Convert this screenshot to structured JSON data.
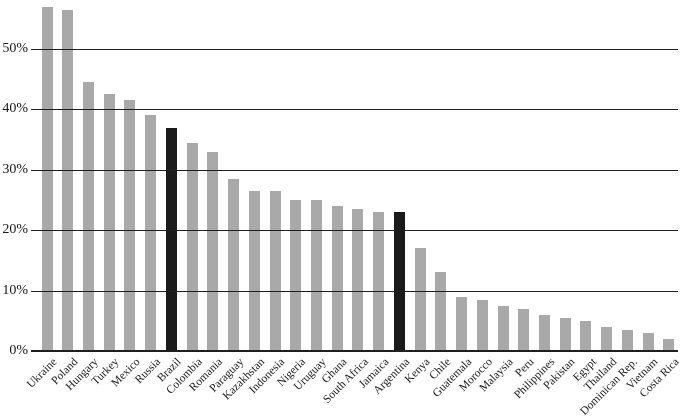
{
  "chart_data": {
    "type": "bar",
    "title": "",
    "xlabel": "",
    "ylabel": "",
    "categories": [
      "Ukraine",
      "Poland",
      "Hungary",
      "Turkey",
      "Mexico",
      "Russia",
      "Brazil",
      "Colombia",
      "Romania",
      "Paraguay",
      "Kazakhstan",
      "Indonesia",
      "Nigeria",
      "Uruguay",
      "Ghana",
      "South Africa",
      "Jamaica",
      "Argentina",
      "Kenya",
      "Chile",
      "Guatemala",
      "Morocco",
      "Malaysia",
      "Peru",
      "Philippines",
      "Pakistan",
      "Egypt",
      "Thailand",
      "Dominican Rep.",
      "Vietnam",
      "Costa Rica"
    ],
    "values": [
      57,
      56.5,
      44.5,
      42.5,
      41.5,
      39,
      37,
      34.5,
      33,
      28.5,
      26.5,
      26.5,
      25,
      25,
      24,
      23.5,
      23,
      23,
      17,
      13,
      9,
      8.5,
      7.5,
      7,
      6,
      5.5,
      5,
      4,
      3.5,
      3,
      2
    ],
    "highlighted_categories": [
      "Brazil",
      "Argentina"
    ],
    "yticks": [
      0,
      10,
      20,
      30,
      40,
      50
    ],
    "ytick_labels": [
      "0%",
      "10%",
      "20%",
      "30%",
      "40%",
      "50%"
    ],
    "ylim": [
      0,
      58
    ],
    "grid": true,
    "gridlines_over_bars": true,
    "legend": "none",
    "colors": {
      "bar": "#a9a9a9",
      "highlight": "#1a1a1a",
      "gridline": "#1f1f1f",
      "axis_text": "#1a1a1a",
      "background": "#ffffff"
    }
  }
}
